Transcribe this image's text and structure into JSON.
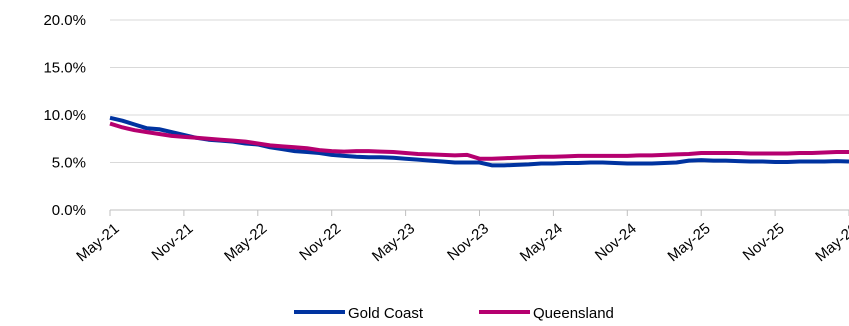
{
  "chart_data": {
    "type": "line",
    "x": [
      "May-21",
      "Jun-21",
      "Jul-21",
      "Aug-21",
      "Sep-21",
      "Oct-21",
      "Nov-21",
      "Dec-21",
      "Jan-22",
      "Feb-22",
      "Mar-22",
      "Apr-22",
      "May-22",
      "Jun-22",
      "Jul-22",
      "Aug-22",
      "Sep-22",
      "Oct-22",
      "Nov-22",
      "Dec-22",
      "Jan-23",
      "Feb-23",
      "Mar-23",
      "Apr-23",
      "May-23",
      "Jun-23",
      "Jul-23",
      "Aug-23",
      "Sep-23",
      "Oct-23",
      "Nov-23",
      "Dec-23",
      "Jan-24",
      "Feb-24",
      "Mar-24",
      "Apr-24",
      "May-24",
      "Jun-24",
      "Jul-24",
      "Aug-24",
      "Sep-24",
      "Oct-24",
      "Nov-24",
      "Dec-24",
      "Jan-25",
      "Feb-25",
      "Mar-25",
      "Apr-25",
      "May-25",
      "Jun-25",
      "Jul-25",
      "Aug-25",
      "Sep-25",
      "Oct-25",
      "Nov-25",
      "Dec-25",
      "Jan-26",
      "Feb-26",
      "Mar-26",
      "Apr-26",
      "May-26"
    ],
    "x_tick_labels": [
      "May-21",
      "Nov-21",
      "May-22",
      "Nov-22",
      "May-23",
      "Nov-23",
      "May-24",
      "Nov-24",
      "May-25",
      "Nov-25",
      "May-26"
    ],
    "y_tick_labels": [
      "0.0%",
      "5.0%",
      "10.0%",
      "15.0%",
      "20.0%"
    ],
    "ylim": [
      0,
      20
    ],
    "grid": "horizontal",
    "legend_position": "bottom",
    "series": [
      {
        "name": "Gold Coast",
        "color": "#0033a0",
        "values": [
          9.7,
          9.4,
          9.0,
          8.6,
          8.5,
          8.2,
          7.9,
          7.6,
          7.4,
          7.3,
          7.2,
          7.0,
          6.9,
          6.6,
          6.4,
          6.2,
          6.1,
          6.0,
          5.8,
          5.7,
          5.6,
          5.55,
          5.55,
          5.5,
          5.4,
          5.3,
          5.2,
          5.1,
          5.0,
          5.0,
          5.0,
          4.7,
          4.7,
          4.75,
          4.8,
          4.9,
          4.9,
          4.95,
          4.95,
          5.0,
          5.0,
          4.95,
          4.9,
          4.9,
          4.9,
          4.95,
          5.0,
          5.2,
          5.25,
          5.2,
          5.2,
          5.15,
          5.1,
          5.1,
          5.05,
          5.05,
          5.1,
          5.1,
          5.1,
          5.15,
          5.1
        ]
      },
      {
        "name": "Queensland",
        "color": "#b5006f",
        "values": [
          9.1,
          8.7,
          8.4,
          8.2,
          8.0,
          7.8,
          7.7,
          7.6,
          7.5,
          7.4,
          7.3,
          7.2,
          7.0,
          6.8,
          6.7,
          6.6,
          6.5,
          6.3,
          6.2,
          6.15,
          6.2,
          6.2,
          6.15,
          6.1,
          6.0,
          5.9,
          5.85,
          5.8,
          5.75,
          5.8,
          5.4,
          5.4,
          5.45,
          5.5,
          5.55,
          5.6,
          5.6,
          5.65,
          5.7,
          5.7,
          5.7,
          5.7,
          5.7,
          5.75,
          5.75,
          5.8,
          5.85,
          5.9,
          6.0,
          6.0,
          6.0,
          6.0,
          5.95,
          5.95,
          5.95,
          5.95,
          6.0,
          6.0,
          6.05,
          6.1,
          6.1
        ]
      }
    ]
  }
}
